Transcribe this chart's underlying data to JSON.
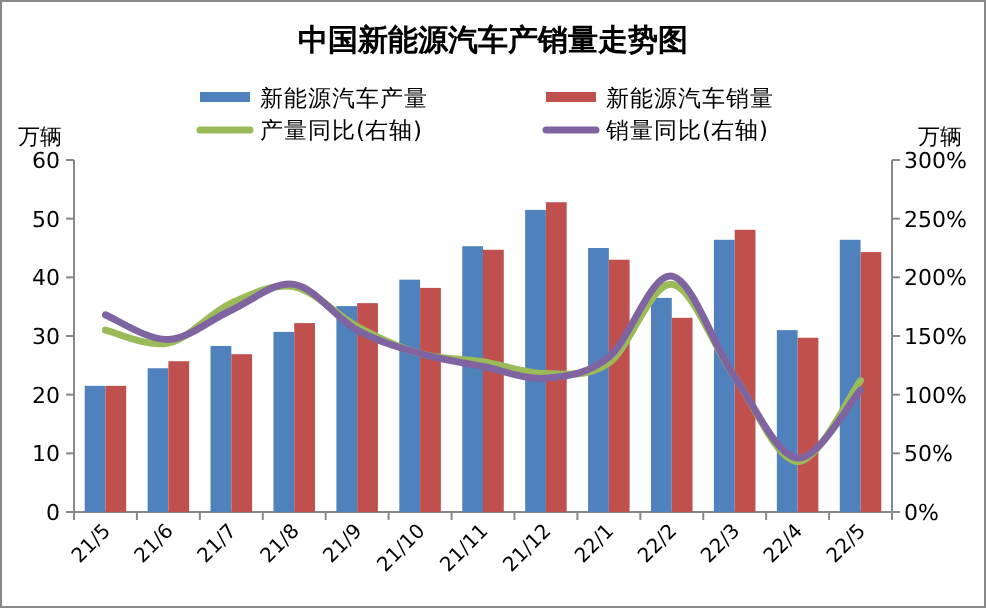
{
  "chart_data": {
    "type": "bar",
    "title": "中国新能源汽车产销量走势图",
    "ylabel": "万辆",
    "y2label": "万辆",
    "categories": [
      "21/5",
      "21/6",
      "21/7",
      "21/8",
      "21/9",
      "21/10",
      "21/11",
      "21/12",
      "22/1",
      "22/2",
      "22/3",
      "22/4",
      "22/5"
    ],
    "series": [
      {
        "name": "新能源汽车产量",
        "color": "#4f81bd",
        "values": [
          21.5,
          24.5,
          28.3,
          30.7,
          35.1,
          39.6,
          45.3,
          51.5,
          45.0,
          36.5,
          46.4,
          31.0,
          46.4
        ]
      },
      {
        "name": "新能源汽车销量",
        "color": "#c0504d",
        "values": [
          21.5,
          25.7,
          26.9,
          32.2,
          35.6,
          38.2,
          44.7,
          52.8,
          43.0,
          33.1,
          48.1,
          29.7,
          44.3
        ]
      },
      {
        "name": "产量同比(右轴)",
        "type": "line",
        "axis": "y2",
        "color": "#9bbb59",
        "values": [
          155,
          144,
          178,
          192,
          158,
          135,
          128,
          118,
          127,
          194,
          115,
          43,
          112
        ]
      },
      {
        "name": "销量同比(右轴)",
        "type": "line",
        "axis": "y2",
        "color": "#8064a2",
        "values": [
          168,
          147,
          172,
          194,
          155,
          135,
          124,
          114,
          132,
          201,
          115,
          46,
          104
        ]
      }
    ],
    "ylim": [
      0,
      60
    ],
    "yticks": [
      0,
      10,
      20,
      30,
      40,
      50,
      60
    ],
    "y2lim": [
      0,
      300
    ],
    "y2ticks": [
      {
        "value": 0,
        "label": "0%"
      },
      {
        "value": 50,
        "label": "50%"
      },
      {
        "value": 100,
        "label": "100%"
      },
      {
        "value": 150,
        "label": "150%"
      },
      {
        "value": 200,
        "label": "200%"
      },
      {
        "value": 250,
        "label": "250%"
      },
      {
        "value": 300,
        "label": "300%"
      }
    ],
    "legend": "top",
    "marker": "none",
    "grid": false
  }
}
